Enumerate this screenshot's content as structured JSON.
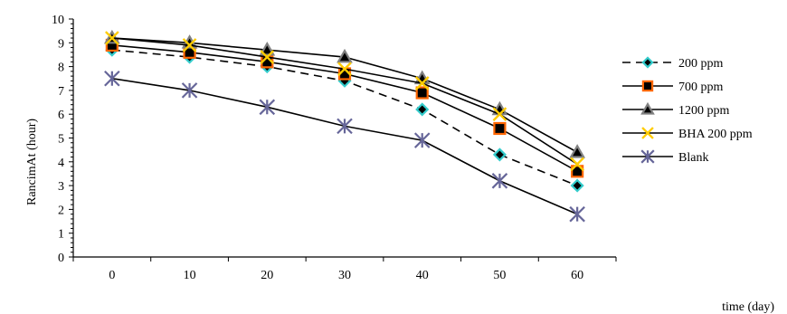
{
  "chart_data": {
    "type": "line",
    "x": [
      0,
      10,
      20,
      30,
      40,
      50,
      60
    ],
    "x_tick_labels": [
      "0",
      "10",
      "20",
      "30",
      "40",
      "50",
      "60"
    ],
    "xlabel": "time (day)",
    "ylabel": "RancimAt (hour)",
    "xlim": [
      -5,
      65
    ],
    "ylim": [
      0,
      10
    ],
    "y_ticks": [
      "0",
      "1",
      "2",
      "3",
      "4",
      "5",
      "6",
      "7",
      "8",
      "9",
      "10"
    ],
    "grid": false,
    "legend_position": "right",
    "series": [
      {
        "name": "200 ppm",
        "values": [
          8.7,
          8.4,
          8.0,
          7.4,
          6.2,
          4.3,
          3.0
        ],
        "line_color": "#000000",
        "line_style": "dashed",
        "marker": "diamond",
        "marker_fill": "#000000",
        "marker_stroke": "#33cccc"
      },
      {
        "name": "700 ppm",
        "values": [
          8.9,
          8.6,
          8.2,
          7.7,
          6.9,
          5.4,
          3.6
        ],
        "line_color": "#000000",
        "line_style": "solid",
        "marker": "square",
        "marker_fill": "#000000",
        "marker_stroke": "#ff6600"
      },
      {
        "name": "1200 ppm",
        "values": [
          9.2,
          9.0,
          8.7,
          8.4,
          7.5,
          6.2,
          4.4
        ],
        "line_color": "#000000",
        "line_style": "solid",
        "marker": "triangle",
        "marker_fill": "#000000",
        "marker_stroke": "#808080"
      },
      {
        "name": "BHA 200 ppm",
        "values": [
          9.2,
          8.9,
          8.4,
          7.9,
          7.3,
          6.0,
          3.9
        ],
        "line_color": "#000000",
        "line_style": "solid",
        "marker": "x",
        "marker_fill": "none",
        "marker_stroke": "#ffcc00"
      },
      {
        "name": "Blank",
        "values": [
          7.5,
          7.0,
          6.3,
          5.5,
          4.9,
          3.2,
          1.8
        ],
        "line_color": "#000000",
        "line_style": "solid",
        "marker": "star",
        "marker_fill": "none",
        "marker_stroke": "#666699"
      }
    ]
  }
}
